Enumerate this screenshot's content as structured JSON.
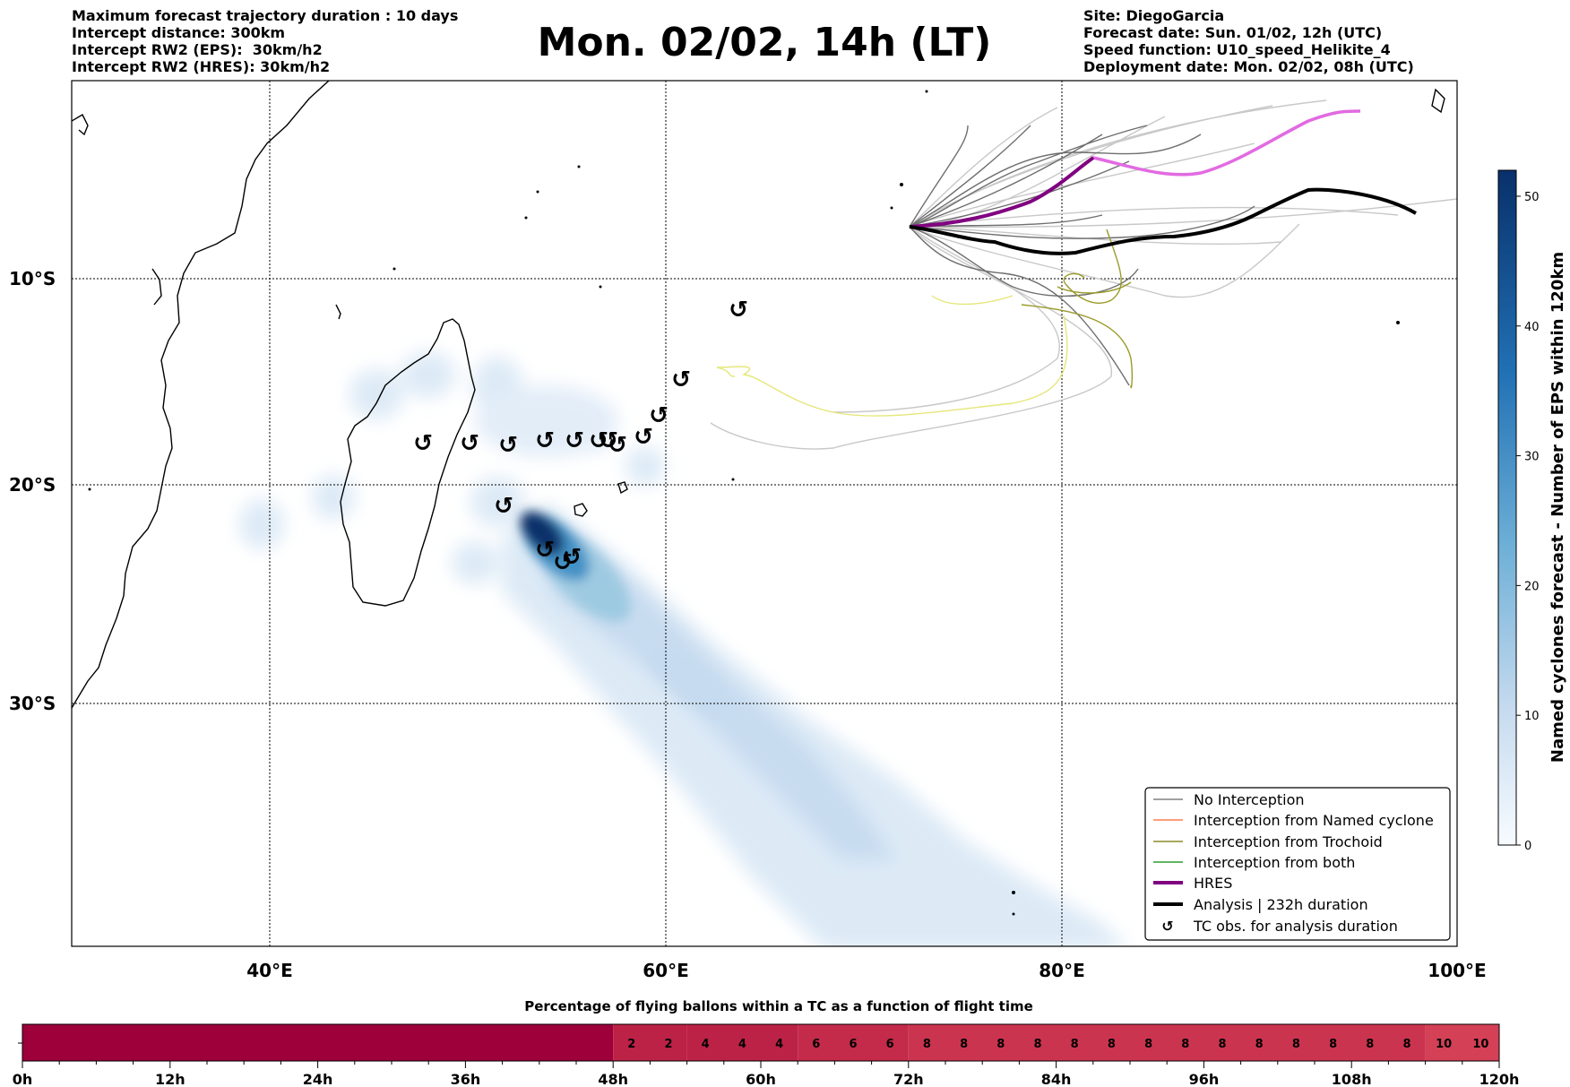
{
  "header": {
    "left": [
      "Maximum forecast trajectory duration : 10 days",
      "Intercept distance: 300km",
      "Intercept RW2 (EPS):  30km/h2",
      "Intercept RW2 (HRES): 30km/h2"
    ],
    "title": "Mon. 02/02, 14h (LT)",
    "right": [
      "Site: DiegoGarcia",
      "Forecast date: Sun. 01/02, 12h (UTC)",
      "Speed function: U10_speed_Helikite_4",
      "Deployment date: Mon. 02/02, 08h (UTC)"
    ]
  },
  "map": {
    "lat_labels": [
      "10°S",
      "20°S",
      "30°S"
    ],
    "lon_labels": [
      "40°E",
      "60°E",
      "80°E",
      "100°E"
    ],
    "tc_symbol": "↺",
    "legend": [
      {
        "label": "No Interception",
        "color": "#808080"
      },
      {
        "label": "Interception from Named cyclone",
        "color": "#ff7f50"
      },
      {
        "label": "Interception from Trochoid",
        "color": "#8b8b2a"
      },
      {
        "label": "Interception from both",
        "color": "#2ca02c"
      },
      {
        "label": "HRES",
        "color": "#800080"
      },
      {
        "label": "Analysis | 232h duration",
        "color": "#000000"
      },
      {
        "label": "TC obs. for analysis duration",
        "color": "#000000"
      }
    ]
  },
  "colorbar": {
    "label": "Named cyclones forecast - Number of EPS within 120km",
    "ticks": [
      {
        "v": 0,
        "t": "0"
      },
      {
        "v": 10,
        "t": "10"
      },
      {
        "v": 20,
        "t": "20"
      },
      {
        "v": 30,
        "t": "30"
      },
      {
        "v": 40,
        "t": "40"
      },
      {
        "v": 50,
        "t": "50"
      }
    ],
    "max": 52
  },
  "timeline": {
    "title": "Percentage of flying ballons within a TC as a function of flight time",
    "tick_labels": [
      "0h",
      "12h",
      "24h",
      "36h",
      "48h",
      "60h",
      "72h",
      "84h",
      "96h",
      "108h",
      "120h"
    ],
    "cells": [
      {
        "from": 0,
        "to": 48,
        "value": ""
      },
      {
        "from": 48,
        "to": 54,
        "value": "2"
      },
      {
        "from": 54,
        "to": 63,
        "value": "4"
      },
      {
        "from": 63,
        "to": 72,
        "value": "6"
      },
      {
        "from": 72,
        "to": 114,
        "value": "8"
      },
      {
        "from": 114,
        "to": 120,
        "value": "10"
      }
    ],
    "value_labels": [
      {
        "h": 49.5,
        "t": "2"
      },
      {
        "h": 52.5,
        "t": "2"
      },
      {
        "h": 55.5,
        "t": "4"
      },
      {
        "h": 58.5,
        "t": "4"
      },
      {
        "h": 61.5,
        "t": "4"
      },
      {
        "h": 64.5,
        "t": "6"
      },
      {
        "h": 67.5,
        "t": "6"
      },
      {
        "h": 70.5,
        "t": "6"
      },
      {
        "h": 73.5,
        "t": "8"
      },
      {
        "h": 76.5,
        "t": "8"
      },
      {
        "h": 79.5,
        "t": "8"
      },
      {
        "h": 82.5,
        "t": "8"
      },
      {
        "h": 85.5,
        "t": "8"
      },
      {
        "h": 88.5,
        "t": "8"
      },
      {
        "h": 91.5,
        "t": "8"
      },
      {
        "h": 94.5,
        "t": "8"
      },
      {
        "h": 97.5,
        "t": "8"
      },
      {
        "h": 100.5,
        "t": "8"
      },
      {
        "h": 103.5,
        "t": "8"
      },
      {
        "h": 106.5,
        "t": "8"
      },
      {
        "h": 109.5,
        "t": "8"
      },
      {
        "h": 112.5,
        "t": "8"
      },
      {
        "h": 115.5,
        "t": "10"
      },
      {
        "h": 118.5,
        "t": "10"
      }
    ]
  }
}
